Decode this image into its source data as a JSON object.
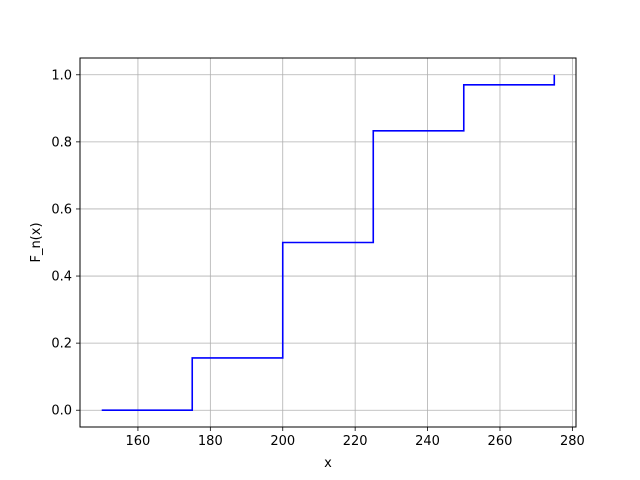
{
  "chart_data": {
    "type": "line",
    "style": "step",
    "title": "",
    "xlabel": "x",
    "ylabel": "F_n(x)",
    "xlim": [
      144,
      281
    ],
    "ylim": [
      -0.05,
      1.05
    ],
    "x_ticks": [
      160,
      180,
      200,
      220,
      240,
      260,
      280
    ],
    "y_ticks": [
      0.0,
      0.2,
      0.4,
      0.6,
      0.8,
      1.0
    ],
    "x_tick_labels": [
      "160",
      "180",
      "200",
      "220",
      "240",
      "260",
      "280"
    ],
    "y_tick_labels": [
      "0.0",
      "0.2",
      "0.4",
      "0.6",
      "0.8",
      "1.0"
    ],
    "grid": true,
    "series": [
      {
        "color": "#0000ff",
        "x": [
          150,
          175,
          175,
          200,
          200,
          225,
          225,
          250,
          250,
          275,
          275
        ],
        "y": [
          0.0,
          0.0,
          0.156,
          0.156,
          0.5,
          0.5,
          0.833,
          0.833,
          0.97,
          0.97,
          1.0
        ]
      }
    ]
  }
}
